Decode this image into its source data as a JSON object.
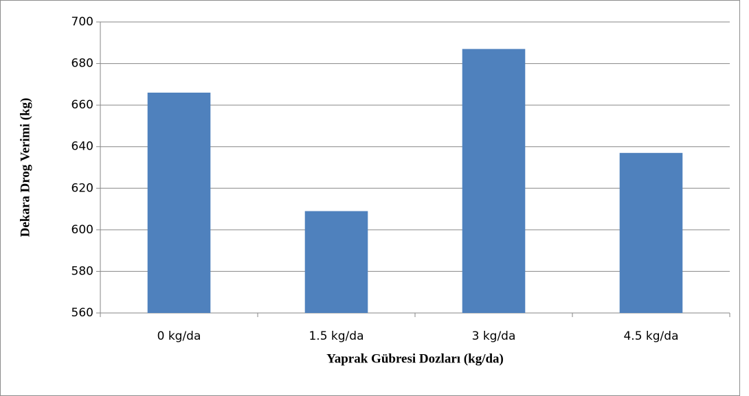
{
  "chart_data": {
    "type": "bar",
    "x_label": "Yaprak Gübresi Dozları (kg/da)",
    "y_label": "Dekara Drog Verimi (kg)",
    "categories": [
      "0 kg/da",
      "1.5 kg/da",
      "3 kg/da",
      "4.5 kg/da"
    ],
    "values": [
      666,
      609,
      687,
      637
    ],
    "color": "#4f81bd",
    "ylim": [
      560,
      700
    ],
    "yticks": [
      560,
      580,
      600,
      620,
      640,
      660,
      680,
      700
    ],
    "grid": true
  }
}
